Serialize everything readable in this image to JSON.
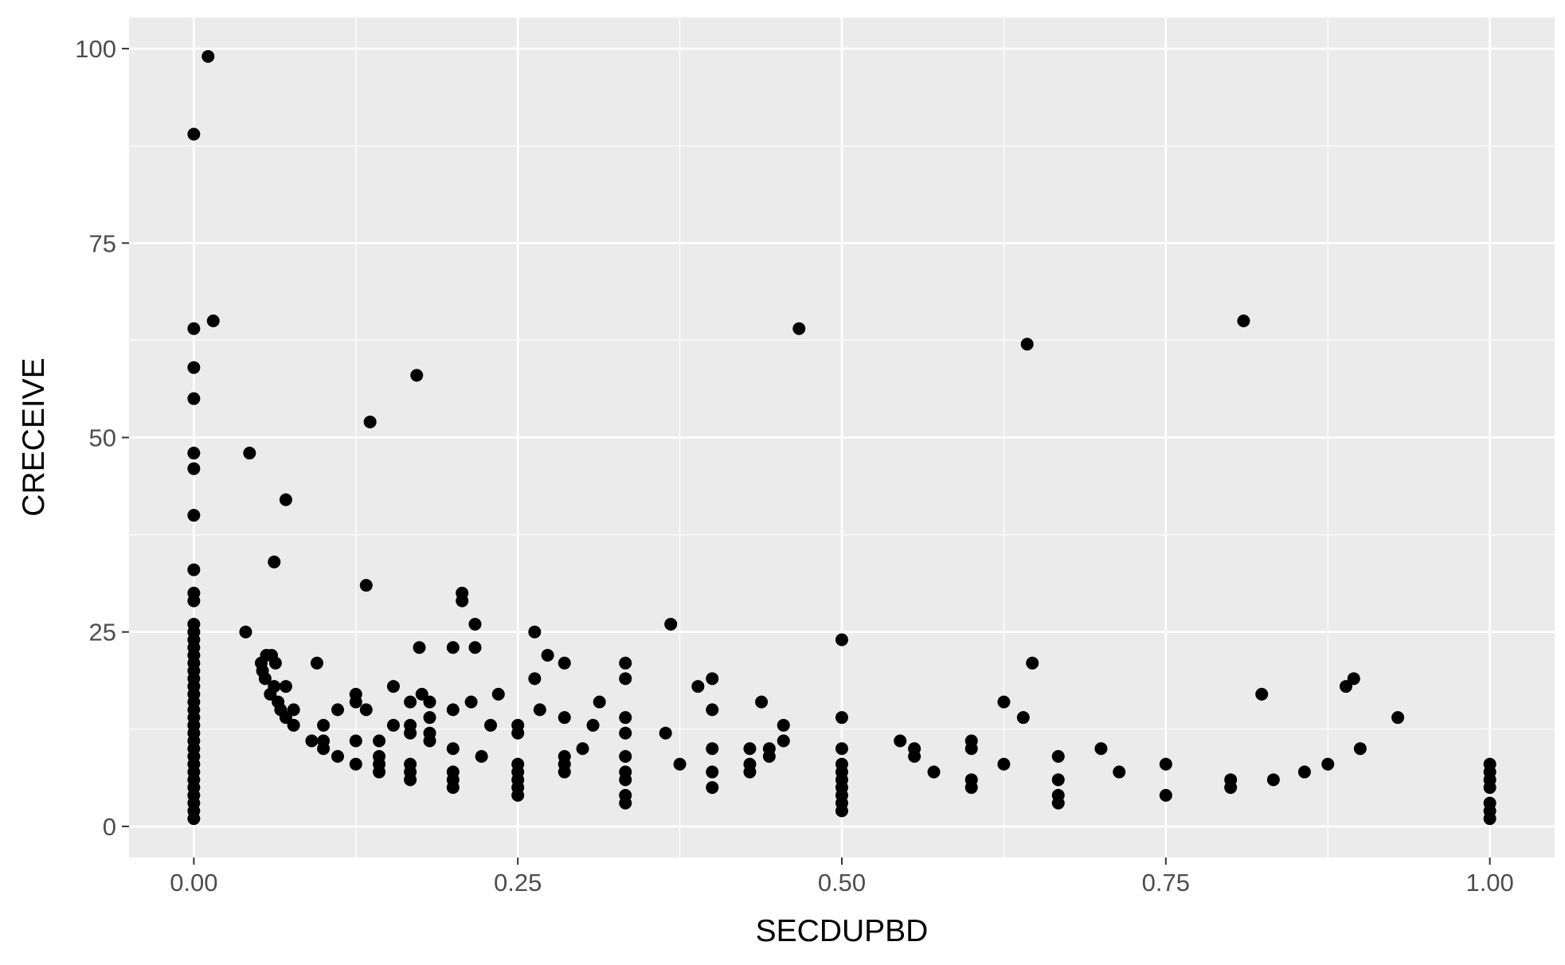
{
  "chart_data": {
    "type": "scatter",
    "title": "",
    "xlabel": "SECDUPBD",
    "ylabel": "CRECEIVE",
    "xlim": [
      -0.05,
      1.05
    ],
    "ylim": [
      -4,
      104
    ],
    "x_ticks": [
      0,
      0.25,
      0.5,
      0.75,
      1.0
    ],
    "x_tick_labels": [
      "0.00",
      "0.25",
      "0.50",
      "0.75",
      "1.00"
    ],
    "y_ticks": [
      0,
      25,
      50,
      75,
      100
    ],
    "y_tick_labels": [
      "0",
      "25",
      "50",
      "75",
      "100"
    ],
    "grid": true,
    "legend": "none",
    "colors": {
      "panel": "#ebebeb",
      "grid": "#ffffff",
      "point": "#000000",
      "tick_text": "#4d4d4d",
      "tick_mark": "#333333"
    },
    "points": [
      [
        0.011,
        99
      ],
      [
        0.0,
        89
      ],
      [
        0.015,
        65
      ],
      [
        0.0,
        64
      ],
      [
        0.0,
        59
      ],
      [
        0.0,
        55
      ],
      [
        0.0,
        48
      ],
      [
        0.0,
        46
      ],
      [
        0.0,
        40
      ],
      [
        0.0,
        33
      ],
      [
        0.0,
        30
      ],
      [
        0.0,
        29
      ],
      [
        0.0,
        26
      ],
      [
        0.0,
        25
      ],
      [
        0.0,
        24
      ],
      [
        0.0,
        23
      ],
      [
        0.0,
        22
      ],
      [
        0.0,
        21
      ],
      [
        0.0,
        20
      ],
      [
        0.0,
        19
      ],
      [
        0.0,
        18
      ],
      [
        0.0,
        17
      ],
      [
        0.0,
        16
      ],
      [
        0.0,
        15
      ],
      [
        0.0,
        14
      ],
      [
        0.0,
        13
      ],
      [
        0.0,
        12
      ],
      [
        0.0,
        11
      ],
      [
        0.0,
        10
      ],
      [
        0.0,
        9
      ],
      [
        0.0,
        8
      ],
      [
        0.0,
        7
      ],
      [
        0.0,
        6
      ],
      [
        0.0,
        5
      ],
      [
        0.0,
        4
      ],
      [
        0.0,
        3
      ],
      [
        0.0,
        2
      ],
      [
        0.0,
        1
      ],
      [
        0.043,
        48
      ],
      [
        0.071,
        42
      ],
      [
        0.062,
        34
      ],
      [
        0.04,
        25
      ],
      [
        0.052,
        21
      ],
      [
        0.053,
        20
      ],
      [
        0.055,
        19
      ],
      [
        0.056,
        22
      ],
      [
        0.06,
        22
      ],
      [
        0.063,
        21
      ],
      [
        0.059,
        17
      ],
      [
        0.062,
        18
      ],
      [
        0.065,
        16
      ],
      [
        0.067,
        15
      ],
      [
        0.071,
        18
      ],
      [
        0.071,
        14
      ],
      [
        0.077,
        15
      ],
      [
        0.077,
        13
      ],
      [
        0.091,
        11
      ],
      [
        0.095,
        21
      ],
      [
        0.1,
        13
      ],
      [
        0.1,
        11
      ],
      [
        0.1,
        10
      ],
      [
        0.111,
        15
      ],
      [
        0.111,
        9
      ],
      [
        0.125,
        17
      ],
      [
        0.125,
        16
      ],
      [
        0.125,
        11
      ],
      [
        0.125,
        8
      ],
      [
        0.133,
        31
      ],
      [
        0.136,
        52
      ],
      [
        0.133,
        15
      ],
      [
        0.143,
        11
      ],
      [
        0.143,
        9
      ],
      [
        0.143,
        8
      ],
      [
        0.143,
        7
      ],
      [
        0.154,
        18
      ],
      [
        0.154,
        13
      ],
      [
        0.167,
        16
      ],
      [
        0.167,
        13
      ],
      [
        0.167,
        12
      ],
      [
        0.167,
        8
      ],
      [
        0.167,
        7
      ],
      [
        0.167,
        6
      ],
      [
        0.172,
        58
      ],
      [
        0.174,
        23
      ],
      [
        0.176,
        17
      ],
      [
        0.182,
        16
      ],
      [
        0.182,
        14
      ],
      [
        0.182,
        12
      ],
      [
        0.182,
        11
      ],
      [
        0.2,
        23
      ],
      [
        0.2,
        15
      ],
      [
        0.2,
        10
      ],
      [
        0.2,
        7
      ],
      [
        0.2,
        6
      ],
      [
        0.2,
        5
      ],
      [
        0.207,
        30
      ],
      [
        0.207,
        29
      ],
      [
        0.214,
        16
      ],
      [
        0.217,
        26
      ],
      [
        0.217,
        23
      ],
      [
        0.222,
        9
      ],
      [
        0.229,
        13
      ],
      [
        0.235,
        17
      ],
      [
        0.25,
        13
      ],
      [
        0.25,
        12
      ],
      [
        0.25,
        8
      ],
      [
        0.25,
        7
      ],
      [
        0.25,
        6
      ],
      [
        0.25,
        5
      ],
      [
        0.25,
        4
      ],
      [
        0.263,
        25
      ],
      [
        0.263,
        19
      ],
      [
        0.267,
        15
      ],
      [
        0.273,
        22
      ],
      [
        0.286,
        21
      ],
      [
        0.286,
        14
      ],
      [
        0.286,
        9
      ],
      [
        0.286,
        8
      ],
      [
        0.286,
        7
      ],
      [
        0.3,
        10
      ],
      [
        0.308,
        13
      ],
      [
        0.313,
        16
      ],
      [
        0.333,
        21
      ],
      [
        0.333,
        19
      ],
      [
        0.333,
        14
      ],
      [
        0.333,
        12
      ],
      [
        0.333,
        9
      ],
      [
        0.333,
        7
      ],
      [
        0.333,
        6
      ],
      [
        0.333,
        4
      ],
      [
        0.333,
        3
      ],
      [
        0.364,
        12
      ],
      [
        0.368,
        26
      ],
      [
        0.375,
        8
      ],
      [
        0.389,
        18
      ],
      [
        0.4,
        19
      ],
      [
        0.4,
        15
      ],
      [
        0.4,
        10
      ],
      [
        0.4,
        7
      ],
      [
        0.4,
        5
      ],
      [
        0.429,
        10
      ],
      [
        0.429,
        8
      ],
      [
        0.429,
        7
      ],
      [
        0.438,
        16
      ],
      [
        0.444,
        10
      ],
      [
        0.444,
        9
      ],
      [
        0.455,
        13
      ],
      [
        0.455,
        11
      ],
      [
        0.467,
        64
      ],
      [
        0.5,
        24
      ],
      [
        0.5,
        14
      ],
      [
        0.5,
        10
      ],
      [
        0.5,
        8
      ],
      [
        0.5,
        7
      ],
      [
        0.5,
        6
      ],
      [
        0.5,
        5
      ],
      [
        0.5,
        4
      ],
      [
        0.5,
        3
      ],
      [
        0.5,
        2
      ],
      [
        0.545,
        11
      ],
      [
        0.556,
        10
      ],
      [
        0.556,
        9
      ],
      [
        0.571,
        7
      ],
      [
        0.6,
        11
      ],
      [
        0.6,
        10
      ],
      [
        0.6,
        6
      ],
      [
        0.6,
        5
      ],
      [
        0.625,
        16
      ],
      [
        0.625,
        8
      ],
      [
        0.643,
        62
      ],
      [
        0.64,
        14
      ],
      [
        0.647,
        21
      ],
      [
        0.667,
        9
      ],
      [
        0.667,
        6
      ],
      [
        0.667,
        4
      ],
      [
        0.667,
        3
      ],
      [
        0.7,
        10
      ],
      [
        0.714,
        7
      ],
      [
        0.75,
        8
      ],
      [
        0.75,
        4
      ],
      [
        0.8,
        6
      ],
      [
        0.8,
        5
      ],
      [
        0.81,
        65
      ],
      [
        0.824,
        17
      ],
      [
        0.833,
        6
      ],
      [
        0.857,
        7
      ],
      [
        0.875,
        8
      ],
      [
        0.889,
        18
      ],
      [
        0.895,
        19
      ],
      [
        0.9,
        10
      ],
      [
        0.929,
        14
      ],
      [
        1.0,
        8
      ],
      [
        1.0,
        7
      ],
      [
        1.0,
        6
      ],
      [
        1.0,
        5
      ],
      [
        1.0,
        3
      ],
      [
        1.0,
        2
      ],
      [
        1.0,
        1
      ]
    ]
  }
}
